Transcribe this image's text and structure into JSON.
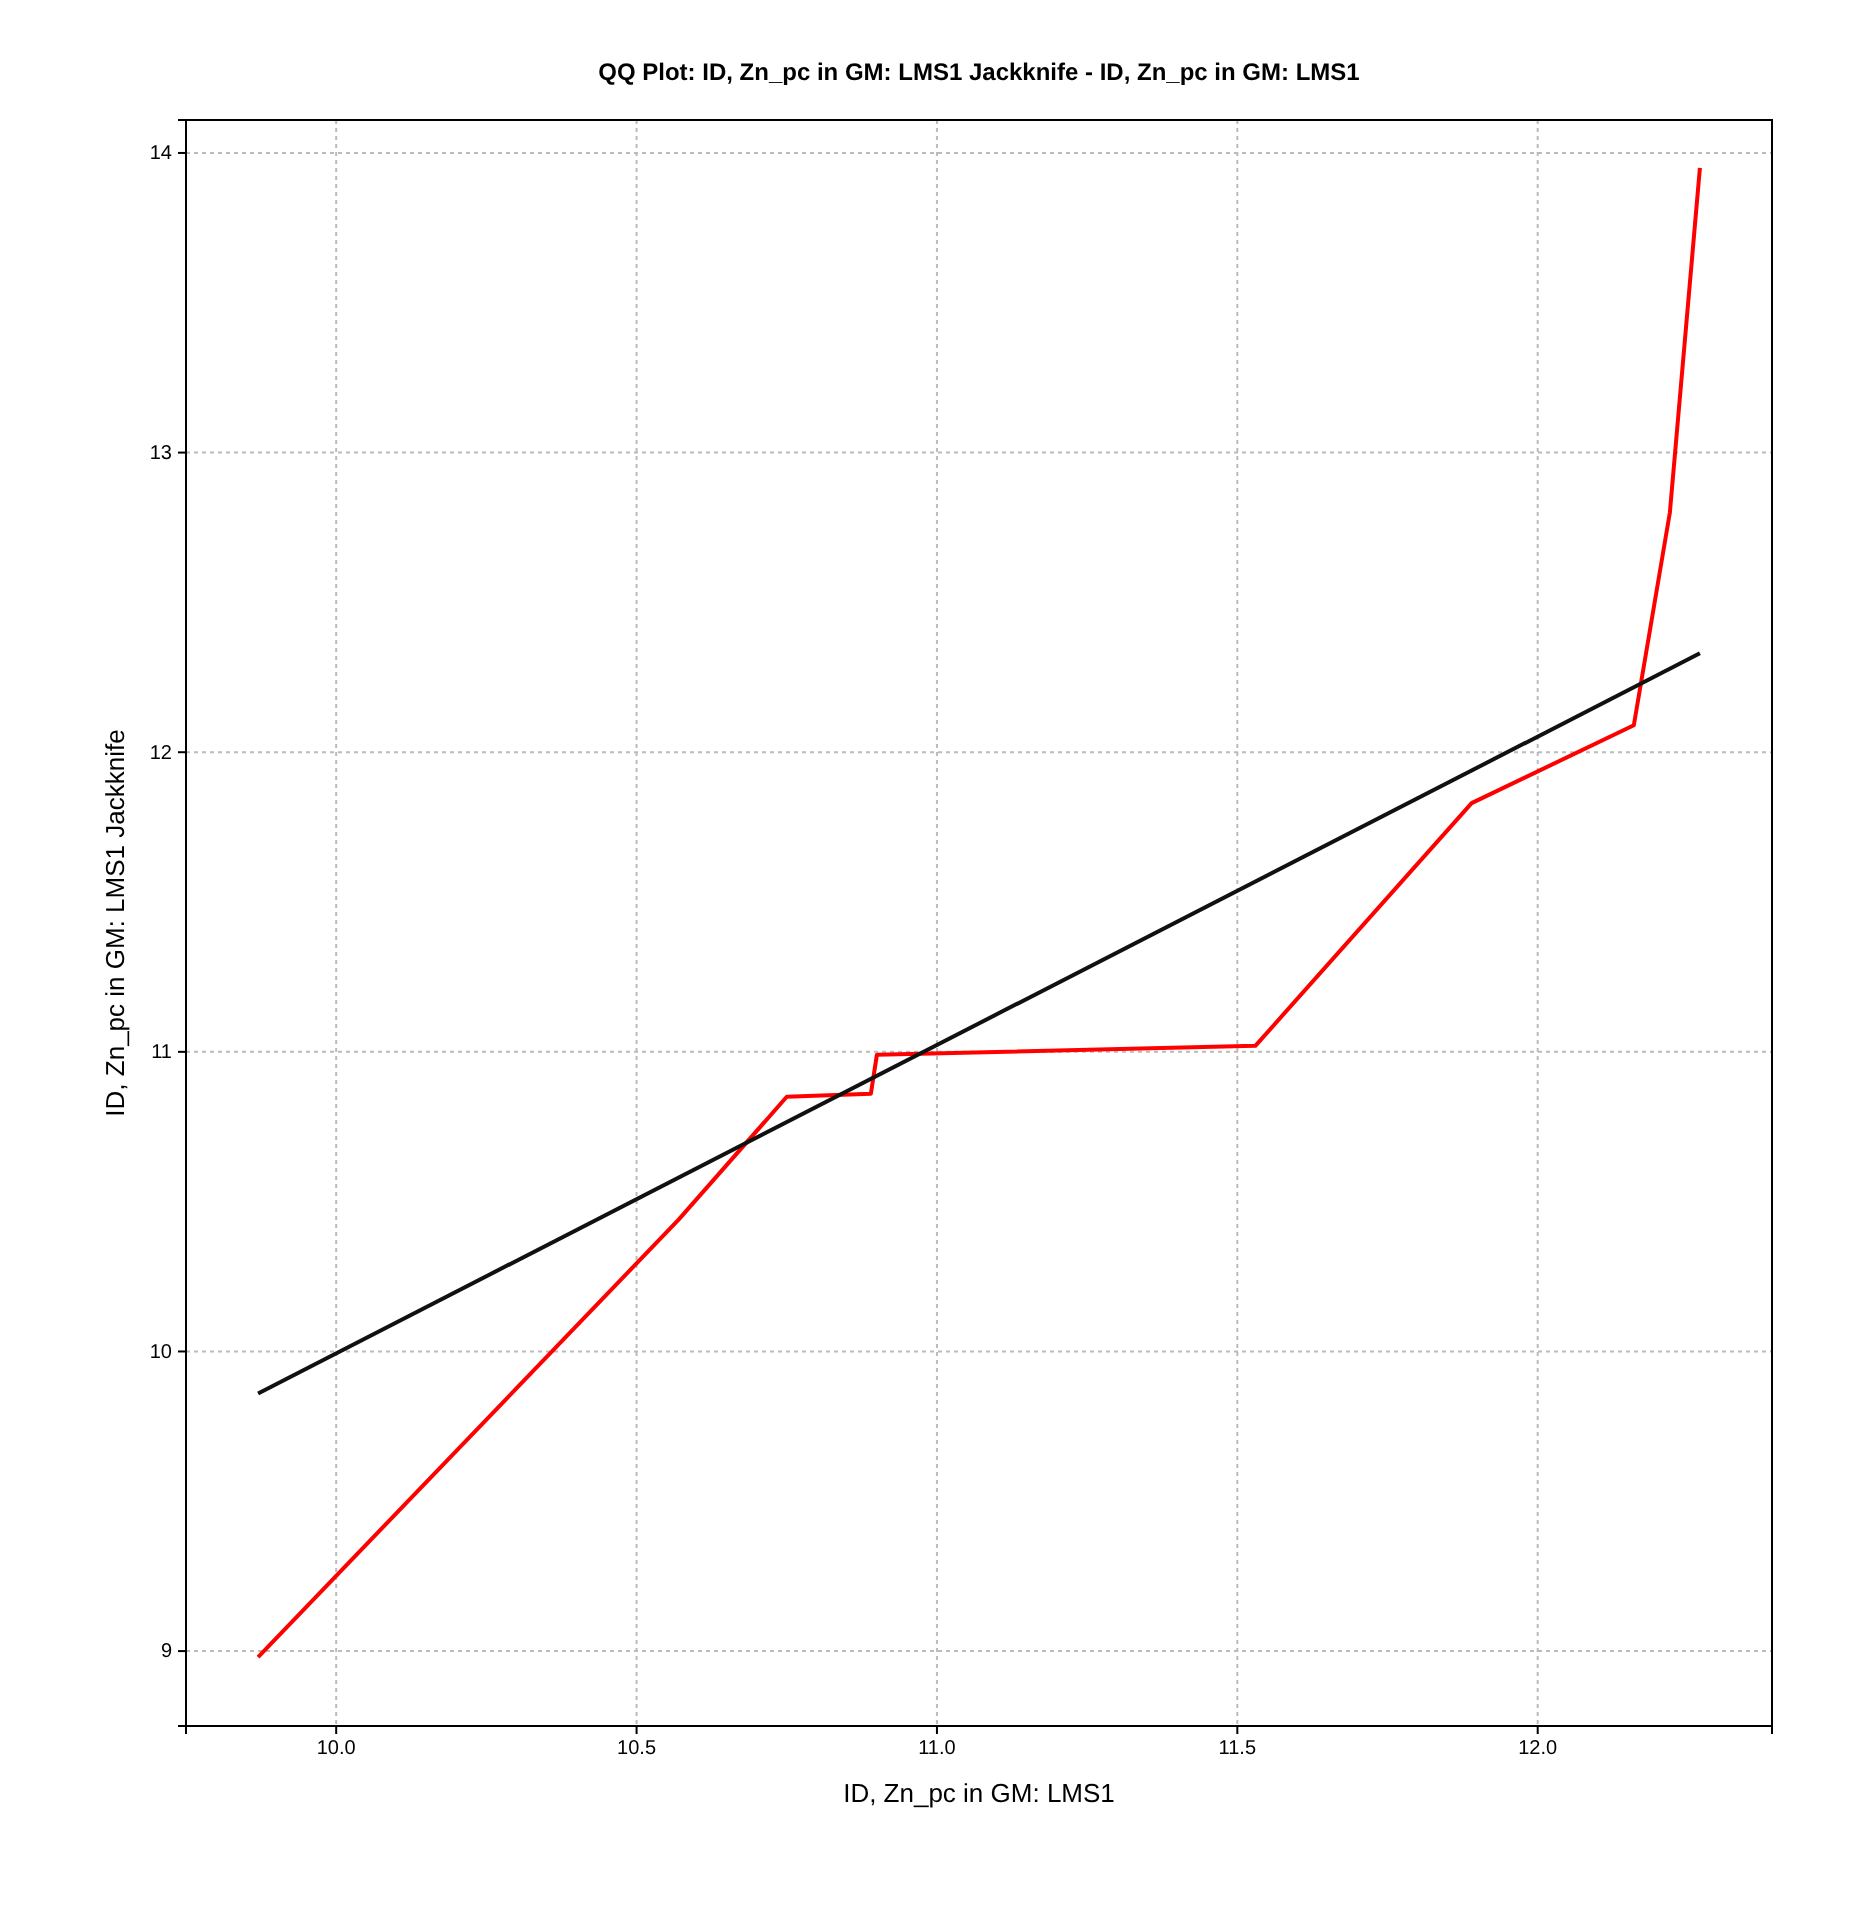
{
  "chart_data": {
    "type": "line",
    "title": "QQ Plot: ID, Zn_pc in GM: LMS1 Jackknife - ID, Zn_pc in GM: LMS1",
    "xlabel": "ID, Zn_pc in GM: LMS1",
    "ylabel": "ID, Zn_pc in GM: LMS1 Jackknife",
    "xlim": [
      9.75,
      12.39
    ],
    "ylim": [
      8.75,
      14.11
    ],
    "xticks": [
      {
        "value": 10,
        "label": "10.0"
      },
      {
        "value": 10.5,
        "label": "10.5"
      },
      {
        "value": 11,
        "label": "11.0"
      },
      {
        "value": 11.5,
        "label": "11.5"
      },
      {
        "value": 12,
        "label": "12.0"
      }
    ],
    "yticks": [
      9,
      10,
      11,
      12,
      13,
      14
    ],
    "grid": true,
    "marker": "none",
    "line_style": "solid",
    "series": [
      {
        "color": "#ff0000",
        "x": [
          9.87,
          10.57,
          10.75,
          10.89,
          10.9,
          11.53,
          11.89,
          12.16,
          12.22,
          12.27
        ],
        "values": [
          8.98,
          10.44,
          10.85,
          10.86,
          10.99,
          11.02,
          11.83,
          12.09,
          12.8,
          13.95
        ]
      },
      {
        "color": "#111111",
        "x": [
          9.87,
          12.27
        ],
        "values": [
          9.86,
          12.33
        ]
      }
    ]
  }
}
